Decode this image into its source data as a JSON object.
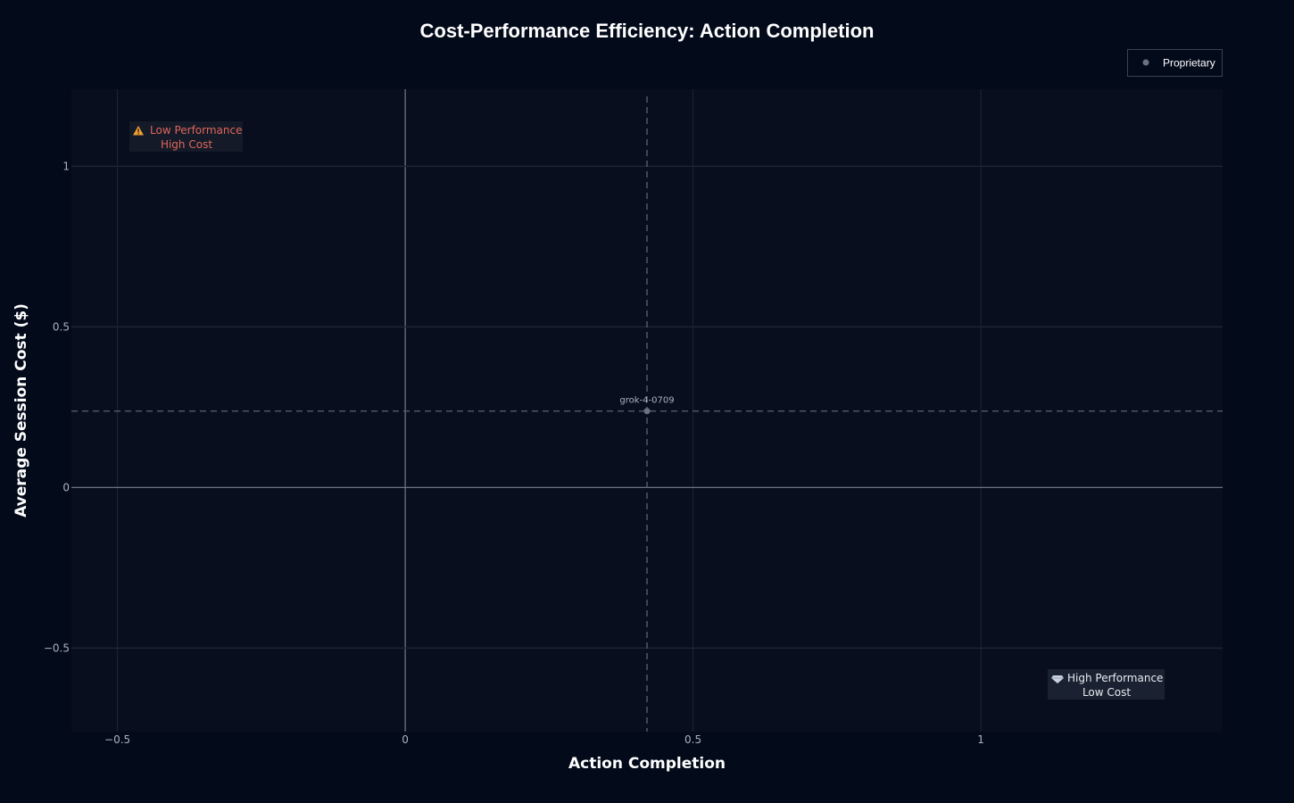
{
  "chart_data": {
    "type": "scatter",
    "title": "Cost-Performance Efficiency: Action Completion",
    "xlabel": "Action Completion",
    "ylabel": "Average Session Cost ($)",
    "xlim": [
      -0.58,
      1.42
    ],
    "ylim": [
      -0.76,
      1.24
    ],
    "x_ticks": [
      -0.5,
      0,
      0.5,
      1
    ],
    "x_tick_labels": [
      "−0.5",
      "0",
      "0.5",
      "1"
    ],
    "y_ticks": [
      -0.5,
      0,
      0.5,
      1
    ],
    "y_tick_labels": [
      "−0.5",
      "0",
      "0.5",
      "1"
    ],
    "grid": true,
    "legend_position": "top-right",
    "series": [
      {
        "name": "Proprietary",
        "color": "#6b7280",
        "points": [
          {
            "label": "grok-4-0709",
            "x": 0.42,
            "y": 0.238
          }
        ]
      }
    ],
    "reference_lines": {
      "x": 0.42,
      "y": 0.238
    },
    "annotations": {
      "top_left": {
        "icon": "warning-icon",
        "line1": "Low Performance",
        "line2": "High Cost",
        "color": "#e0665a"
      },
      "bottom_right": {
        "icon": "diamond-icon",
        "line1": "High Performance",
        "line2": "Low Cost",
        "color": "#e8ecf2"
      }
    }
  },
  "colors": {
    "page_background": "#030a1a",
    "plot_background": "#080e1e",
    "grid": "#1e2533",
    "zero_line": "#6b7280",
    "reference_line": "#5a6473"
  }
}
